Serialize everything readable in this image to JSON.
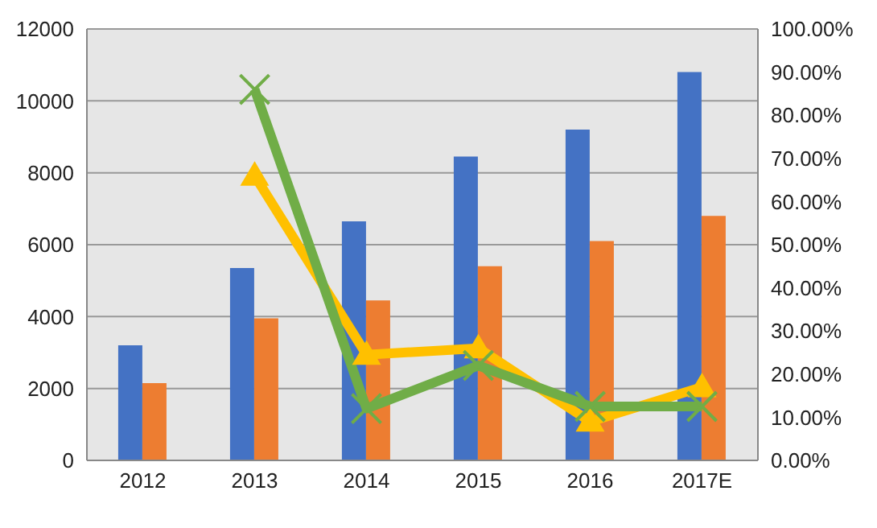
{
  "chart_data": {
    "type": "bar",
    "categories": [
      "2012",
      "2013",
      "2014",
      "2015",
      "2016",
      "2017E"
    ],
    "series": [
      {
        "color": "#4472c4",
        "values": [
          3200,
          5350,
          6650,
          8450,
          9200,
          10800
        ]
      },
      {
        "color": "#ed7d31",
        "values": [
          2150,
          3950,
          4450,
          5400,
          6100,
          6800
        ]
      },
      {
        "type": "line",
        "axis": "y2",
        "color": "#ffc000",
        "marker": "triangle",
        "values": [
          null,
          66,
          24.5,
          26,
          9,
          17
        ]
      },
      {
        "type": "line",
        "axis": "y2",
        "color": "#70ad47",
        "marker": "cross",
        "values": [
          null,
          86,
          12,
          22,
          12.5,
          12.5
        ]
      }
    ],
    "ylim": [
      0,
      12000
    ],
    "yticks": [
      0,
      2000,
      4000,
      6000,
      8000,
      10000,
      12000
    ],
    "y2lim": [
      0,
      100
    ],
    "y2ticks": [
      {
        "value": 0,
        "label": "0.00%"
      },
      {
        "value": 10,
        "label": "10.00%"
      },
      {
        "value": 20,
        "label": "20.00%"
      },
      {
        "value": 30,
        "label": "30.00%"
      },
      {
        "value": 40,
        "label": "40.00%"
      },
      {
        "value": 50,
        "label": "50.00%"
      },
      {
        "value": 60,
        "label": "60.00%"
      },
      {
        "value": 70,
        "label": "70.00%"
      },
      {
        "value": 80,
        "label": "80.00%"
      },
      {
        "value": 90,
        "label": "90.00%"
      },
      {
        "value": 100,
        "label": "100.00%"
      }
    ],
    "grid": "y",
    "legend": false
  }
}
